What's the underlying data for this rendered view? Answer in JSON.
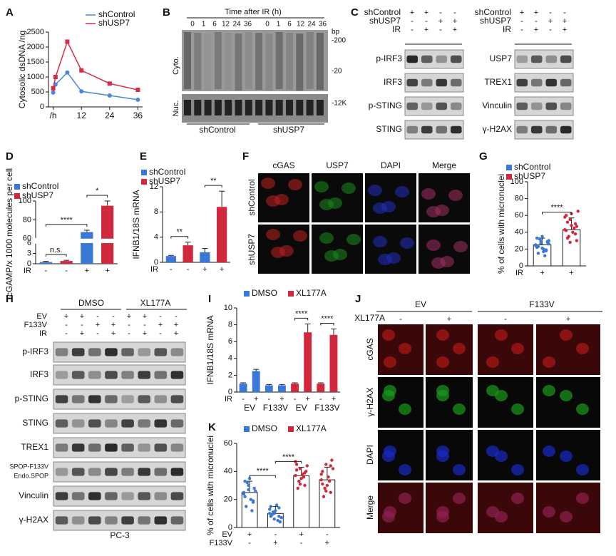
{
  "panel_labels": [
    "A",
    "B",
    "C",
    "D",
    "E",
    "F",
    "G",
    "H",
    "I",
    "J",
    "K"
  ],
  "chart_data": [
    {
      "type": "line",
      "ylabel": "Cytosolic dsDNA /ng",
      "x": [
        0,
        1,
        6,
        12,
        24,
        36
      ],
      "xlim": [
        -2,
        38
      ],
      "xticks": [
        {
          "value": 0,
          "label": "/h"
        },
        12,
        24,
        36
      ],
      "ylim": [
        0,
        2500
      ],
      "yticks": [
        0,
        500,
        1000,
        1500,
        2000,
        2500
      ],
      "series": [
        {
          "name": "shControl",
          "color": "#4a86de",
          "values": [
            480,
            750,
            1150,
            520,
            380,
            240
          ]
        },
        {
          "name": "shUSP7",
          "color": "#d42d48",
          "values": [
            620,
            1000,
            2180,
            1220,
            780,
            570
          ]
        }
      ]
    },
    {
      "type": "bar",
      "ylabel": "cGAMP/x 1000 molecules per cell",
      "ylim": [
        0,
        100
      ],
      "axis_break": [
        6,
        60
      ],
      "yticks": [
        0,
        3,
        6,
        60,
        80,
        100
      ],
      "values": [
        0.5,
        0.8,
        67,
        95
      ],
      "errors": [
        0.2,
        0.2,
        2,
        5
      ],
      "colors": [
        "#3a78d8",
        "#d0283c",
        "#3a78d8",
        "#d0283c"
      ],
      "legend": [
        {
          "name": "shControl",
          "color": "#3a78d8"
        },
        {
          "name": "shUSP7",
          "color": "#d0283c"
        }
      ],
      "rows": [
        {
          "label": "IR",
          "values": [
            "-",
            "-",
            "+",
            "+"
          ]
        }
      ],
      "comparisons": [
        {
          "bars": [
            0,
            1
          ],
          "label": "n.s."
        },
        {
          "bars": [
            0,
            2
          ],
          "label": "****"
        },
        {
          "bars": [
            2,
            3
          ],
          "label": "*"
        }
      ]
    },
    {
      "type": "bar",
      "ylabel": "IFNB1/18S mRNA",
      "ylim": [
        0,
        12
      ],
      "yticks": [
        0,
        4,
        8,
        12
      ],
      "values": [
        1,
        2.7,
        1.6,
        8.8
      ],
      "errors": [
        0.1,
        0.5,
        0.6,
        2.5
      ],
      "colors": [
        "#3a78d8",
        "#d0283c",
        "#3a78d8",
        "#d0283c"
      ],
      "legend": [
        {
          "name": "shControl",
          "color": "#3a78d8"
        },
        {
          "name": "shUSP7",
          "color": "#d0283c"
        }
      ],
      "rows": [
        {
          "label": "IR",
          "values": [
            "-",
            "-",
            "+",
            "+"
          ]
        }
      ],
      "comparisons": [
        {
          "bars": [
            0,
            1
          ],
          "label": "**"
        },
        {
          "bars": [
            2,
            3
          ],
          "label": "**"
        }
      ]
    },
    {
      "type": "bar",
      "ylabel": "% of cells with micronuclei",
      "ylim": [
        0,
        100
      ],
      "yticks": [
        0,
        20,
        40,
        60,
        80,
        100
      ],
      "values": [
        25,
        43
      ],
      "errors": [
        8,
        14
      ],
      "colors": [
        "#3a78d8",
        "#d0283c"
      ],
      "hollow": true,
      "points": [
        [
          25,
          30,
          18,
          22,
          35,
          28,
          15,
          20,
          26,
          32,
          12,
          24,
          27,
          19,
          33,
          21,
          29,
          23,
          17,
          30
        ],
        [
          43,
          55,
          38,
          60,
          48,
          30,
          52,
          40,
          65,
          35,
          45,
          58,
          28,
          50,
          42,
          62,
          47,
          33
        ]
      ],
      "legend": [
        {
          "name": "shControl",
          "color": "#3a78d8"
        },
        {
          "name": "shUSP7",
          "color": "#d0283c"
        }
      ],
      "rows": [
        {
          "label": "IR",
          "values": [
            "+",
            "+"
          ]
        }
      ],
      "comparisons": [
        {
          "bars": [
            0,
            1
          ],
          "label": "****"
        }
      ]
    },
    {
      "type": "bar",
      "ylabel": "IFNB1/18S mRNA",
      "ylim": [
        0,
        10
      ],
      "yticks": [
        0,
        2,
        4,
        6,
        8,
        10
      ],
      "values": [
        1,
        2.5,
        0.8,
        0.8,
        1,
        7.1,
        1,
        6.8
      ],
      "errors": [
        0.1,
        0.2,
        0.1,
        0.1,
        0.1,
        1,
        0.1,
        0.7
      ],
      "colors": [
        "#3a78d8",
        "#3a78d8",
        "#3a78d8",
        "#3a78d8",
        "#d0283c",
        "#d0283c",
        "#d0283c",
        "#d0283c"
      ],
      "legend": [
        {
          "name": "DMSO",
          "color": "#3a78d8"
        },
        {
          "name": "XL177A",
          "color": "#d0283c"
        }
      ],
      "rows": [
        {
          "label": "IR",
          "values": [
            "-",
            "+",
            "-",
            "+",
            "-",
            "+",
            "-",
            "+"
          ]
        }
      ],
      "groups": [
        "EV",
        "F133V",
        "EV",
        "F133V"
      ],
      "comparisons": [
        {
          "bars": [
            4,
            5
          ],
          "label": "****"
        },
        {
          "bars": [
            6,
            7
          ],
          "label": "****"
        }
      ]
    },
    {
      "type": "bar",
      "ylabel": "% of cells with micronuclei",
      "ylim": [
        0,
        60
      ],
      "yticks": [
        0,
        20,
        40,
        60
      ],
      "values": [
        25,
        10,
        37,
        34
      ],
      "errors": [
        8,
        5,
        6,
        9
      ],
      "colors": [
        "#3a78d8",
        "#3a78d8",
        "#d0283c",
        "#d0283c"
      ],
      "hollow": true,
      "points": [
        [
          25,
          30,
          18,
          22,
          35,
          28,
          15,
          20,
          26,
          32,
          12,
          24,
          27,
          19,
          33
        ],
        [
          10,
          6,
          14,
          8,
          12,
          4,
          9,
          16,
          7,
          11,
          5,
          13,
          10,
          8,
          15
        ],
        [
          37,
          42,
          30,
          45,
          35,
          40,
          28,
          38,
          44,
          33,
          36,
          47,
          31,
          39,
          41
        ],
        [
          34,
          45,
          25,
          40,
          30,
          48,
          22,
          36,
          42,
          28,
          33,
          38,
          26,
          44,
          31
        ]
      ],
      "legend": [
        {
          "name": "DMSO",
          "color": "#3a78d8"
        },
        {
          "name": "XL177A",
          "color": "#d0283c"
        }
      ],
      "rows": [
        {
          "label": "EV",
          "values": [
            "+",
            "-",
            "+",
            "-"
          ]
        },
        {
          "label": "F133V",
          "values": [
            "-",
            "+",
            "-",
            "+"
          ]
        }
      ],
      "comparisons": [
        {
          "bars": [
            0,
            1
          ],
          "label": "****"
        },
        {
          "bars": [
            1,
            2
          ],
          "label": "****"
        }
      ]
    }
  ],
  "blot_b": {
    "title": "Time after IR (h)",
    "lanes": [
      "0",
      "1",
      "6",
      "12",
      "24",
      "36",
      "0",
      "1",
      "6",
      "12",
      "24",
      "36"
    ],
    "rows": [
      "Cyto.",
      "Nuc."
    ],
    "markers": [
      "bp",
      "-200",
      "-20",
      "-12K"
    ],
    "groups": [
      "shControl",
      "shUSP7"
    ]
  },
  "blot_c": {
    "header": [
      {
        "label": "shControl",
        "values": [
          "+",
          "+",
          "-",
          "-"
        ]
      },
      {
        "label": "shUSP7",
        "values": [
          "-",
          "-",
          "+",
          "+"
        ]
      },
      {
        "label": "IR",
        "values": [
          "-",
          "+",
          "-",
          "+"
        ]
      }
    ],
    "left": [
      "p-IRF3",
      "IRF3",
      "p-STING",
      "STING"
    ],
    "right": [
      "USP7",
      "TREX1",
      "Vinculin",
      "γ-H2AX"
    ]
  },
  "blot_h": {
    "groups": [
      "DMSO",
      "XL177A"
    ],
    "header": [
      {
        "label": "EV",
        "values": [
          "+",
          "+",
          "-",
          "-",
          "+",
          "+",
          "-",
          "-"
        ]
      },
      {
        "label": "F133V",
        "values": [
          "-",
          "-",
          "+",
          "+",
          "-",
          "-",
          "+",
          "+"
        ]
      },
      {
        "label": "IR",
        "values": [
          "-",
          "+",
          "-",
          "+",
          "-",
          "+",
          "-",
          "+"
        ]
      }
    ],
    "rows": [
      "p-IRF3",
      "IRF3",
      "p-STING",
      "STING",
      "TREX1",
      "SPOP-F133V",
      "Endo.SPOP",
      "Vinculin",
      "γ-H2AX"
    ],
    "footer": "PC-3"
  },
  "images_f": {
    "columns": [
      "cGAS",
      "USP7",
      "DAPI",
      "Merge"
    ],
    "rows": [
      "shControl",
      "shUSP7"
    ]
  },
  "images_j": {
    "groups": [
      "EV",
      "F133V"
    ],
    "treatment": "XL177A",
    "signs": [
      "-",
      "+",
      "-",
      "+"
    ],
    "rows": [
      "cGAS",
      "γ-H2AX",
      "DAPI",
      "Merge"
    ]
  }
}
